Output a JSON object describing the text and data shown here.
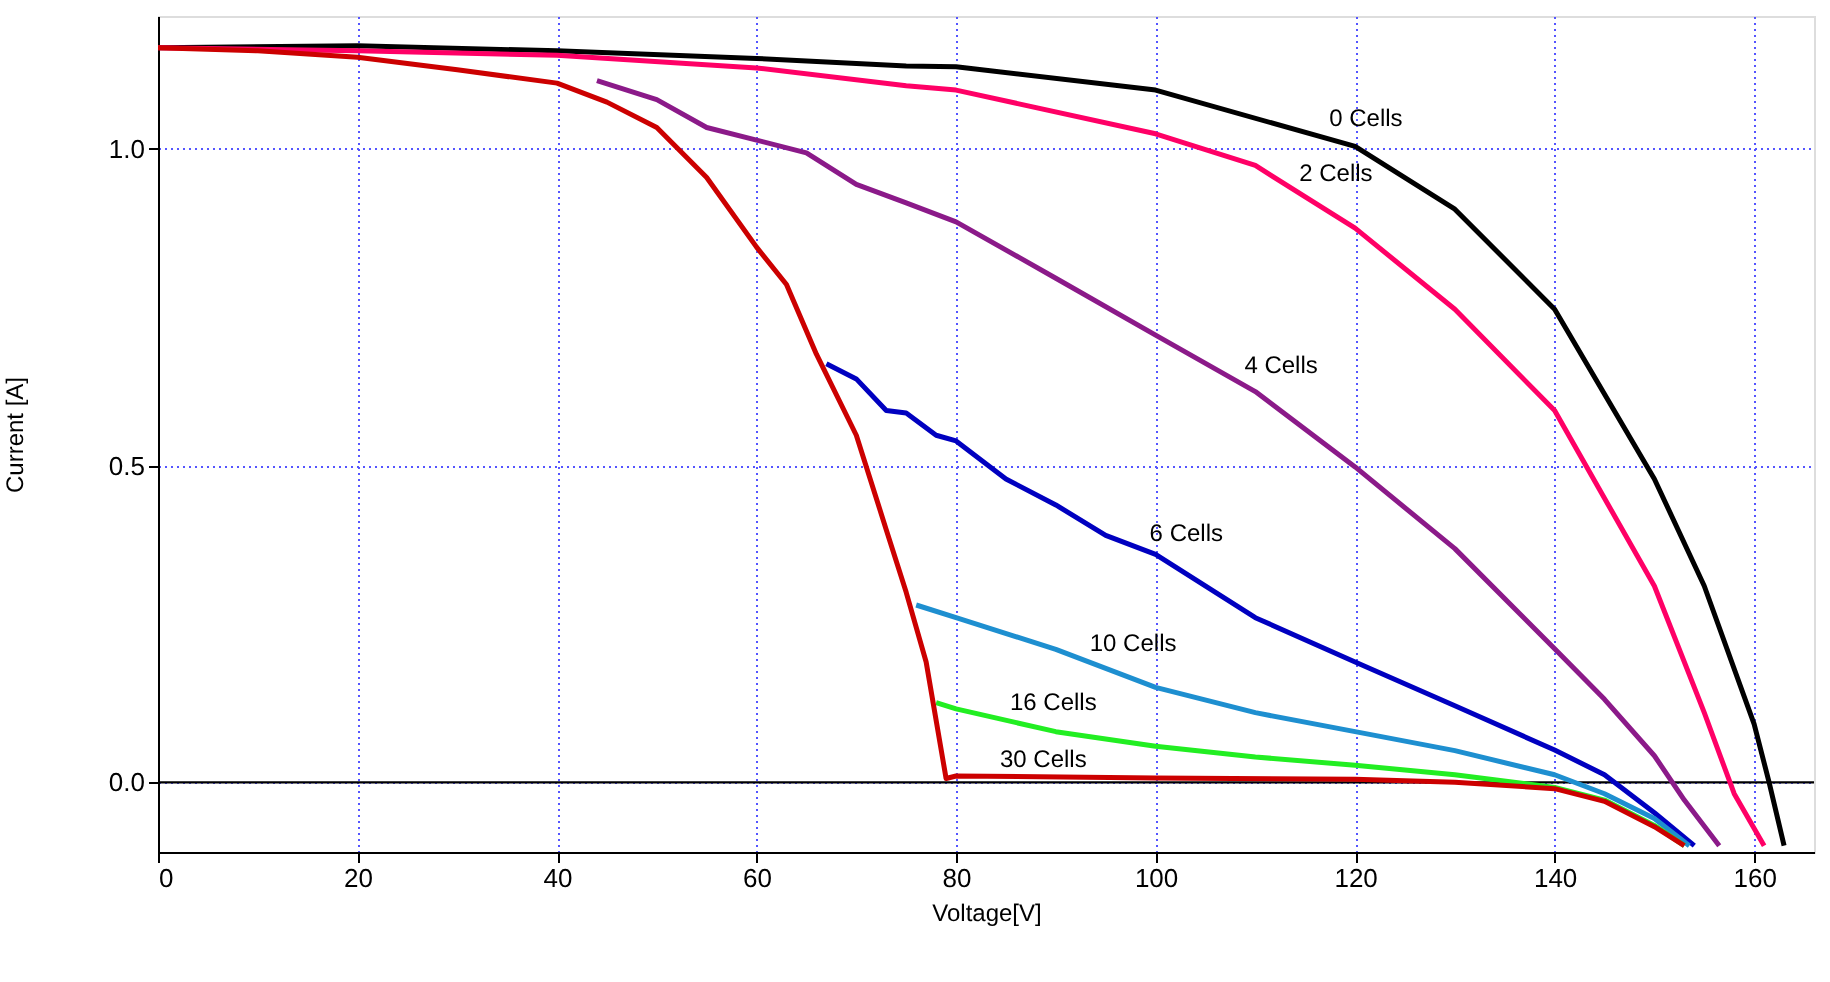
{
  "chart_data": {
    "type": "line",
    "xlabel": "Voltage[V]",
    "ylabel": "Current [A]",
    "xlim": [
      0,
      166
    ],
    "ylim": [
      -0.11,
      1.21
    ],
    "xticks": [
      0,
      20,
      40,
      60,
      80,
      100,
      120,
      140,
      160
    ],
    "yticks": [
      {
        "value": 0,
        "label": "0.0"
      },
      0.5,
      {
        "value": 1,
        "label": "1.0"
      }
    ],
    "grid": true,
    "line_style": "solid",
    "marker": "none",
    "ref_lines": [
      {
        "axis": "y",
        "value": 0,
        "color": "#000000"
      }
    ],
    "series": [
      {
        "color": "#000000",
        "x": [
          0,
          20,
          40,
          60,
          75,
          80,
          100,
          120,
          130,
          140,
          150,
          155,
          160,
          161.5,
          163
        ],
        "values": [
          1.16,
          1.163,
          1.155,
          1.143,
          1.131,
          1.13,
          1.093,
          1.004,
          0.905,
          0.747,
          0.479,
          0.31,
          0.092,
          0.0,
          -0.1
        ]
      },
      {
        "color": "#ff0066",
        "x": [
          0,
          20,
          40,
          60,
          75,
          80,
          100,
          110,
          120,
          130,
          140,
          150,
          155,
          158,
          161
        ],
        "values": [
          1.16,
          1.155,
          1.148,
          1.128,
          1.1,
          1.093,
          1.024,
          0.974,
          0.875,
          0.747,
          0.587,
          0.31,
          0.11,
          -0.018,
          -0.1
        ]
      },
      {
        "color": "#8b1a89",
        "x": [
          44,
          50,
          55,
          60,
          65,
          70,
          75,
          80,
          90,
          100,
          110,
          120,
          130,
          140,
          145,
          150,
          153,
          156.5
        ],
        "values": [
          1.108,
          1.078,
          1.034,
          1.014,
          0.994,
          0.944,
          0.915,
          0.885,
          0.796,
          0.706,
          0.617,
          0.498,
          0.369,
          0.211,
          0.131,
          0.042,
          -0.028,
          -0.1
        ]
      },
      {
        "color": "#0000c0",
        "x": [
          67,
          70,
          73,
          75,
          78,
          80,
          85,
          90,
          95,
          100,
          110,
          120,
          130,
          140,
          145,
          150,
          154
        ],
        "values": [
          0.661,
          0.637,
          0.587,
          0.583,
          0.548,
          0.539,
          0.479,
          0.438,
          0.39,
          0.36,
          0.26,
          0.19,
          0.121,
          0.051,
          0.012,
          -0.048,
          -0.1
        ]
      },
      {
        "color": "#1e8fd0",
        "x": [
          76,
          80,
          90,
          100,
          110,
          120,
          130,
          140,
          145,
          150,
          153.5
        ],
        "values": [
          0.28,
          0.26,
          0.21,
          0.15,
          0.11,
          0.08,
          0.05,
          0.012,
          -0.018,
          -0.057,
          -0.1
        ]
      },
      {
        "color": "#22ee22",
        "x": [
          78,
          80,
          90,
          100,
          110,
          120,
          130,
          140,
          145,
          150,
          153
        ],
        "values": [
          0.126,
          0.116,
          0.08,
          0.057,
          0.04,
          0.027,
          0.012,
          -0.008,
          -0.028,
          -0.068,
          -0.1
        ]
      },
      {
        "color": "#cc0000",
        "x": [
          0,
          10,
          20,
          30,
          40,
          45,
          50,
          55,
          60,
          63,
          66,
          70,
          73,
          75,
          77,
          79,
          80,
          100,
          120,
          130,
          140,
          145,
          150,
          153
        ],
        "values": [
          1.16,
          1.155,
          1.145,
          1.125,
          1.104,
          1.074,
          1.034,
          0.955,
          0.845,
          0.786,
          0.676,
          0.548,
          0.399,
          0.3,
          0.19,
          0.006,
          0.01,
          0.007,
          0.005,
          0.0,
          -0.01,
          -0.03,
          -0.07,
          -0.1
        ]
      }
    ],
    "annotations": [
      {
        "text": "0 Cells",
        "x": 117,
        "y": 1.02
      },
      {
        "text": "2 Cells",
        "x": 114,
        "y": 0.934
      },
      {
        "text": "4 Cells",
        "x": 108.5,
        "y": 0.63
      },
      {
        "text": "6 Cells",
        "x": 99,
        "y": 0.366
      },
      {
        "text": "10 Cells",
        "x": 93,
        "y": 0.192
      },
      {
        "text": "16 Cells",
        "x": 85,
        "y": 0.098
      },
      {
        "text": "30 Cells",
        "x": 84,
        "y": 0.009
      }
    ]
  }
}
